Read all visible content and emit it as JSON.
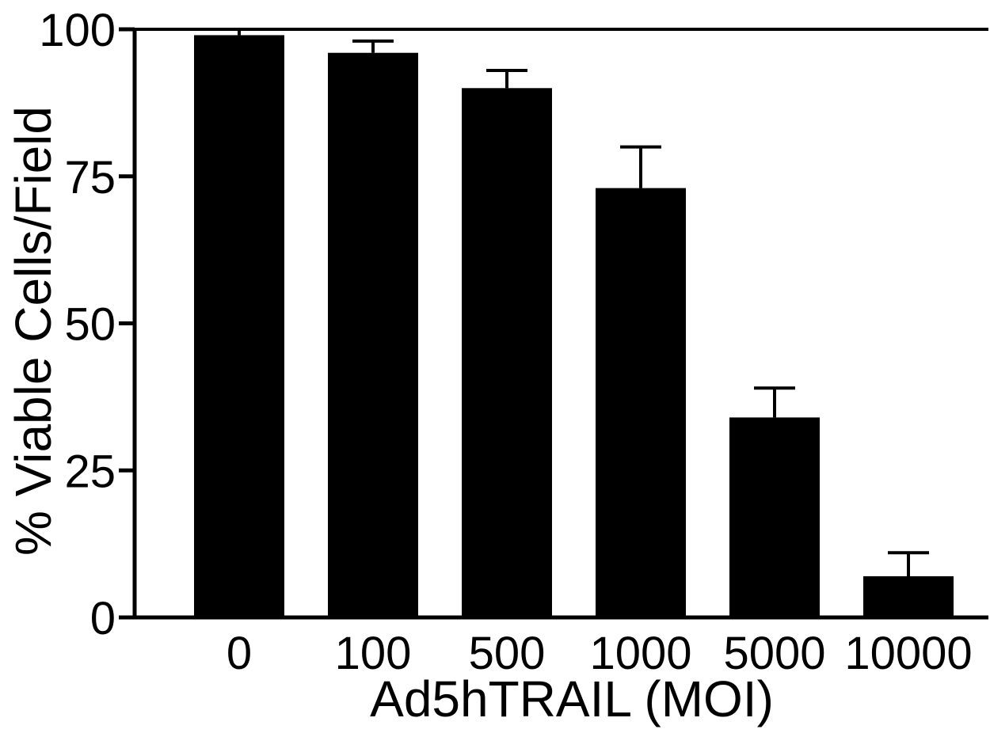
{
  "chart_data": {
    "type": "bar",
    "categories": [
      "0",
      "100",
      "500",
      "1000",
      "5000",
      "10000"
    ],
    "values": [
      99,
      96,
      90,
      73,
      34,
      7
    ],
    "errors": [
      1,
      2,
      3,
      7,
      5,
      4
    ],
    "title": "",
    "xlabel": "Ad5hTRAIL (MOI)",
    "ylabel": "% Viable Cells/Field",
    "ylim": [
      0,
      100
    ],
    "yticks": [
      "0",
      "25",
      "50",
      "75",
      "100"
    ],
    "grid": false,
    "bar_color": "#000000"
  }
}
